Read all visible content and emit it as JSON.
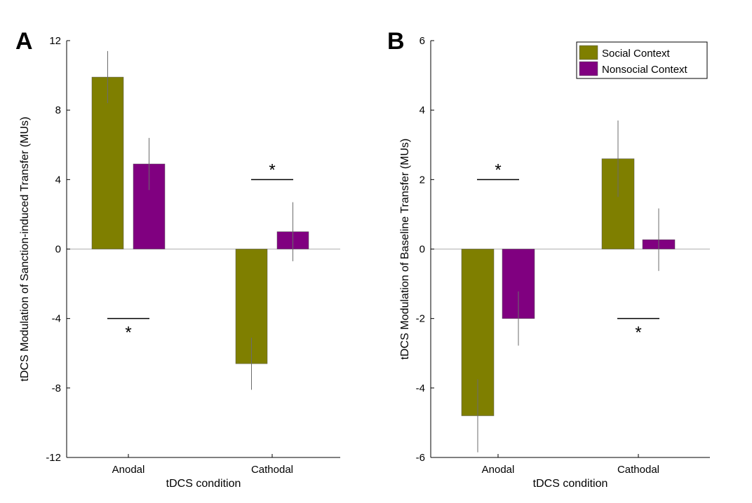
{
  "colors": {
    "social": "#7f7f00",
    "nonsocial": "#800080"
  },
  "chart_data": [
    {
      "panel": "A",
      "type": "bar",
      "categories": [
        "Anodal",
        "Cathodal"
      ],
      "series": [
        {
          "name": "Social Context",
          "values": [
            9.9,
            -6.6
          ],
          "errors": [
            1.5,
            1.5
          ]
        },
        {
          "name": "Nonsocial Context",
          "values": [
            4.9,
            1.0
          ],
          "errors": [
            1.5,
            1.7
          ]
        }
      ],
      "xlabel": "tDCS condition",
      "ylabel": "tDCS Modulation of Sanction-induced Transfer (MUs)",
      "ylim": [
        -12,
        12
      ],
      "yticks": [
        -12,
        -8,
        -4,
        0,
        4,
        8,
        12
      ],
      "significance": [
        {
          "category": "Anodal",
          "y_value": -4,
          "label": "*",
          "label_position": "below"
        },
        {
          "category": "Cathodal",
          "y_value": 4,
          "label": "*",
          "label_position": "above"
        }
      ]
    },
    {
      "panel": "B",
      "type": "bar",
      "categories": [
        "Anodal",
        "Cathodal"
      ],
      "series": [
        {
          "name": "Social Context",
          "values": [
            -4.8,
            2.6
          ],
          "errors": [
            1.05,
            1.1
          ]
        },
        {
          "name": "Nonsocial Context",
          "values": [
            -2.0,
            0.27
          ],
          "errors": [
            0.78,
            0.9
          ]
        }
      ],
      "xlabel": "tDCS condition",
      "ylabel": "tDCS Modulation of Baseline Transfer (MUs)",
      "ylim": [
        -6,
        6
      ],
      "yticks": [
        -6,
        -4,
        -2,
        0,
        2,
        4,
        6
      ],
      "legend": {
        "entries": [
          "Social Context",
          "Nonsocial Context"
        ],
        "placement": "top-right"
      },
      "significance": [
        {
          "category": "Anodal",
          "y_value": 2,
          "label": "*",
          "label_position": "above"
        },
        {
          "category": "Cathodal",
          "y_value": -2,
          "label": "*",
          "label_position": "below"
        }
      ]
    }
  ]
}
